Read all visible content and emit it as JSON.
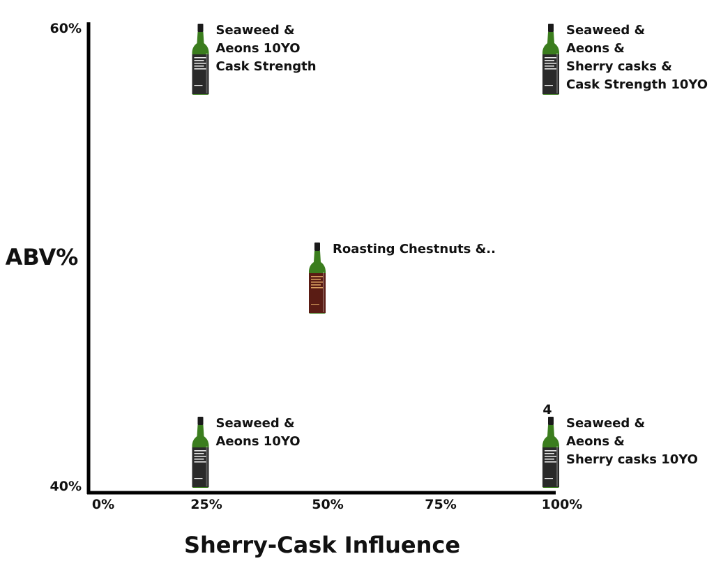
{
  "chart_data": {
    "type": "scatter",
    "title": "",
    "xlabel": "Sherry-Cask Influence",
    "ylabel": "ABV%",
    "xlim": [
      0,
      100
    ],
    "ylim": [
      40,
      60
    ],
    "x_ticks": [
      "0%",
      "25%",
      "50%",
      "75%",
      "100%"
    ],
    "y_ticks": [
      "40%",
      "60%"
    ],
    "grid": false,
    "legend": "none",
    "points": [
      {
        "x": 25,
        "y": 40,
        "label": [
          "Seaweed &",
          "Aeons 10YO"
        ],
        "bottle": "dark-label",
        "bottle_color": "#2a2a2a",
        "liquid_color": "#3b7d1e"
      },
      {
        "x": 100,
        "y": 40,
        "label": [
          "Seaweed &",
          "Aeons &",
          "Sherry casks 10YO"
        ],
        "bottle": "dark-label",
        "bottle_color": "#2a2a2a",
        "liquid_color": "#3b7d1e"
      },
      {
        "x": 50,
        "y": 50,
        "label": [
          "Roasting Chestnuts &.."
        ],
        "bottle": "red-label",
        "bottle_color": "#5a1c14",
        "liquid_color": "#3b7d1e"
      },
      {
        "x": 25,
        "y": 60,
        "label": [
          "Seaweed &",
          "Aeons 10YO",
          "Cask Strength"
        ],
        "bottle": "dark-label",
        "bottle_color": "#2a2a2a",
        "liquid_color": "#3b7d1e"
      },
      {
        "x": 100,
        "y": 60,
        "label": [
          "Seaweed &",
          "Aeons &",
          "Sherry casks &",
          "Cask Strength 10YO"
        ],
        "bottle": "dark-label",
        "bottle_color": "#2a2a2a",
        "liquid_color": "#3b7d1e"
      }
    ],
    "annotations": [
      {
        "text": "4",
        "x": 100,
        "y": 40
      }
    ]
  }
}
